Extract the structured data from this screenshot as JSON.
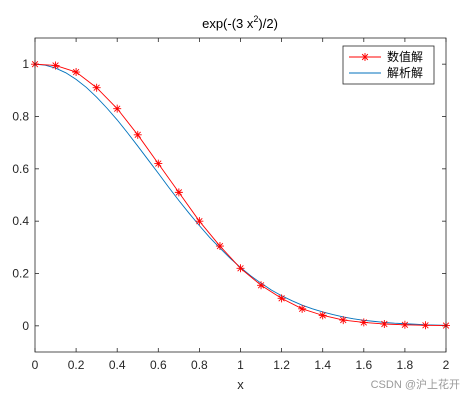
{
  "watermark": "CSDN @沪上花开",
  "chart_data": {
    "type": "line",
    "title": "exp(-(3 x²)/2)",
    "title_parts": {
      "prefix": "exp(-(3 x",
      "sup": "2",
      "suffix": ")/2)"
    },
    "xlabel": "x",
    "ylabel": "",
    "xlim": [
      0,
      2
    ],
    "ylim": [
      -0.1,
      1.1
    ],
    "xticks": [
      0,
      0.2,
      0.4,
      0.6,
      0.8,
      1,
      1.2,
      1.4,
      1.6,
      1.8,
      2
    ],
    "xtick_labels": [
      "0",
      "0.2",
      "0.4",
      "0.6",
      "0.8",
      "1",
      "1.2",
      "1.4",
      "1.6",
      "1.8",
      "2"
    ],
    "yticks": [
      0,
      0.2,
      0.4,
      0.6,
      0.8,
      1
    ],
    "ytick_labels": [
      "0",
      "0.2",
      "0.4",
      "0.6",
      "0.8",
      "1"
    ],
    "legend_position": "top-right",
    "grid": false,
    "series": [
      {
        "name": "数值解",
        "style": "line-with-star-markers",
        "color": "#ff0000",
        "x": [
          0,
          0.1,
          0.2,
          0.3,
          0.4,
          0.5,
          0.6,
          0.7,
          0.8,
          0.9,
          1.0,
          1.1,
          1.2,
          1.3,
          1.4,
          1.5,
          1.6,
          1.7,
          1.8,
          1.9,
          2.0
        ],
        "y": [
          1.0,
          0.995,
          0.97,
          0.91,
          0.83,
          0.73,
          0.62,
          0.51,
          0.4,
          0.305,
          0.22,
          0.155,
          0.105,
          0.065,
          0.04,
          0.022,
          0.013,
          0.007,
          0.004,
          0.002,
          0.001
        ]
      },
      {
        "name": "解析解",
        "style": "line",
        "color": "#0072bd",
        "x": [
          0,
          0.05,
          0.1,
          0.15,
          0.2,
          0.25,
          0.3,
          0.35,
          0.4,
          0.45,
          0.5,
          0.55,
          0.6,
          0.65,
          0.7,
          0.75,
          0.8,
          0.85,
          0.9,
          0.95,
          1.0,
          1.05,
          1.1,
          1.15,
          1.2,
          1.25,
          1.3,
          1.35,
          1.4,
          1.45,
          1.5,
          1.55,
          1.6,
          1.65,
          1.7,
          1.75,
          1.8,
          1.85,
          1.9,
          1.95,
          2.0
        ],
        "y": [
          1.0,
          0.996,
          0.985,
          0.967,
          0.942,
          0.911,
          0.874,
          0.832,
          0.787,
          0.738,
          0.687,
          0.635,
          0.583,
          0.53,
          0.479,
          0.43,
          0.383,
          0.338,
          0.297,
          0.258,
          0.223,
          0.191,
          0.163,
          0.137,
          0.115,
          0.096,
          0.079,
          0.065,
          0.053,
          0.043,
          0.034,
          0.027,
          0.021,
          0.017,
          0.013,
          0.01,
          0.008,
          0.006,
          0.004,
          0.003,
          0.002
        ]
      }
    ]
  }
}
